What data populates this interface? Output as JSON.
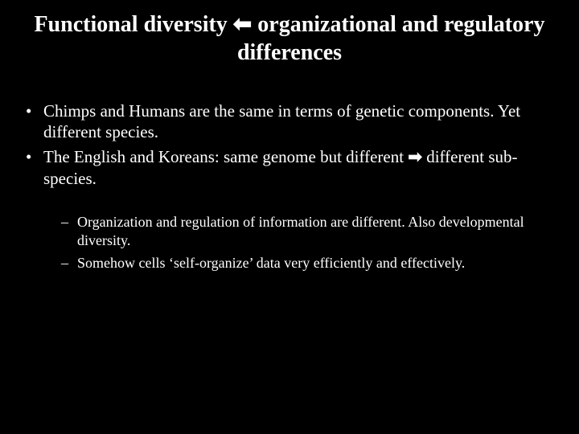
{
  "colors": {
    "background": "#000000",
    "text": "#ffffff"
  },
  "typography": {
    "family": "Times New Roman",
    "title_fontsize": 28,
    "l1_fontsize": 21,
    "l2_fontsize": 18
  },
  "title": {
    "pre": "Functional diversity ",
    "arrow": "⬅",
    "post": " organizational and regulatory differences"
  },
  "bullets_l1": [
    {
      "text": "Chimps and Humans are the same in terms of genetic components. Yet different species."
    },
    {
      "pre": "The English and Koreans: same genome but different ",
      "arrow": "➡",
      "post": " different sub-species."
    }
  ],
  "bullets_l2": [
    {
      "text": "Organization and regulation of information are different. Also developmental diversity."
    },
    {
      "text": "Somehow cells ‘self-organize’ data very efficiently and effectively."
    }
  ]
}
